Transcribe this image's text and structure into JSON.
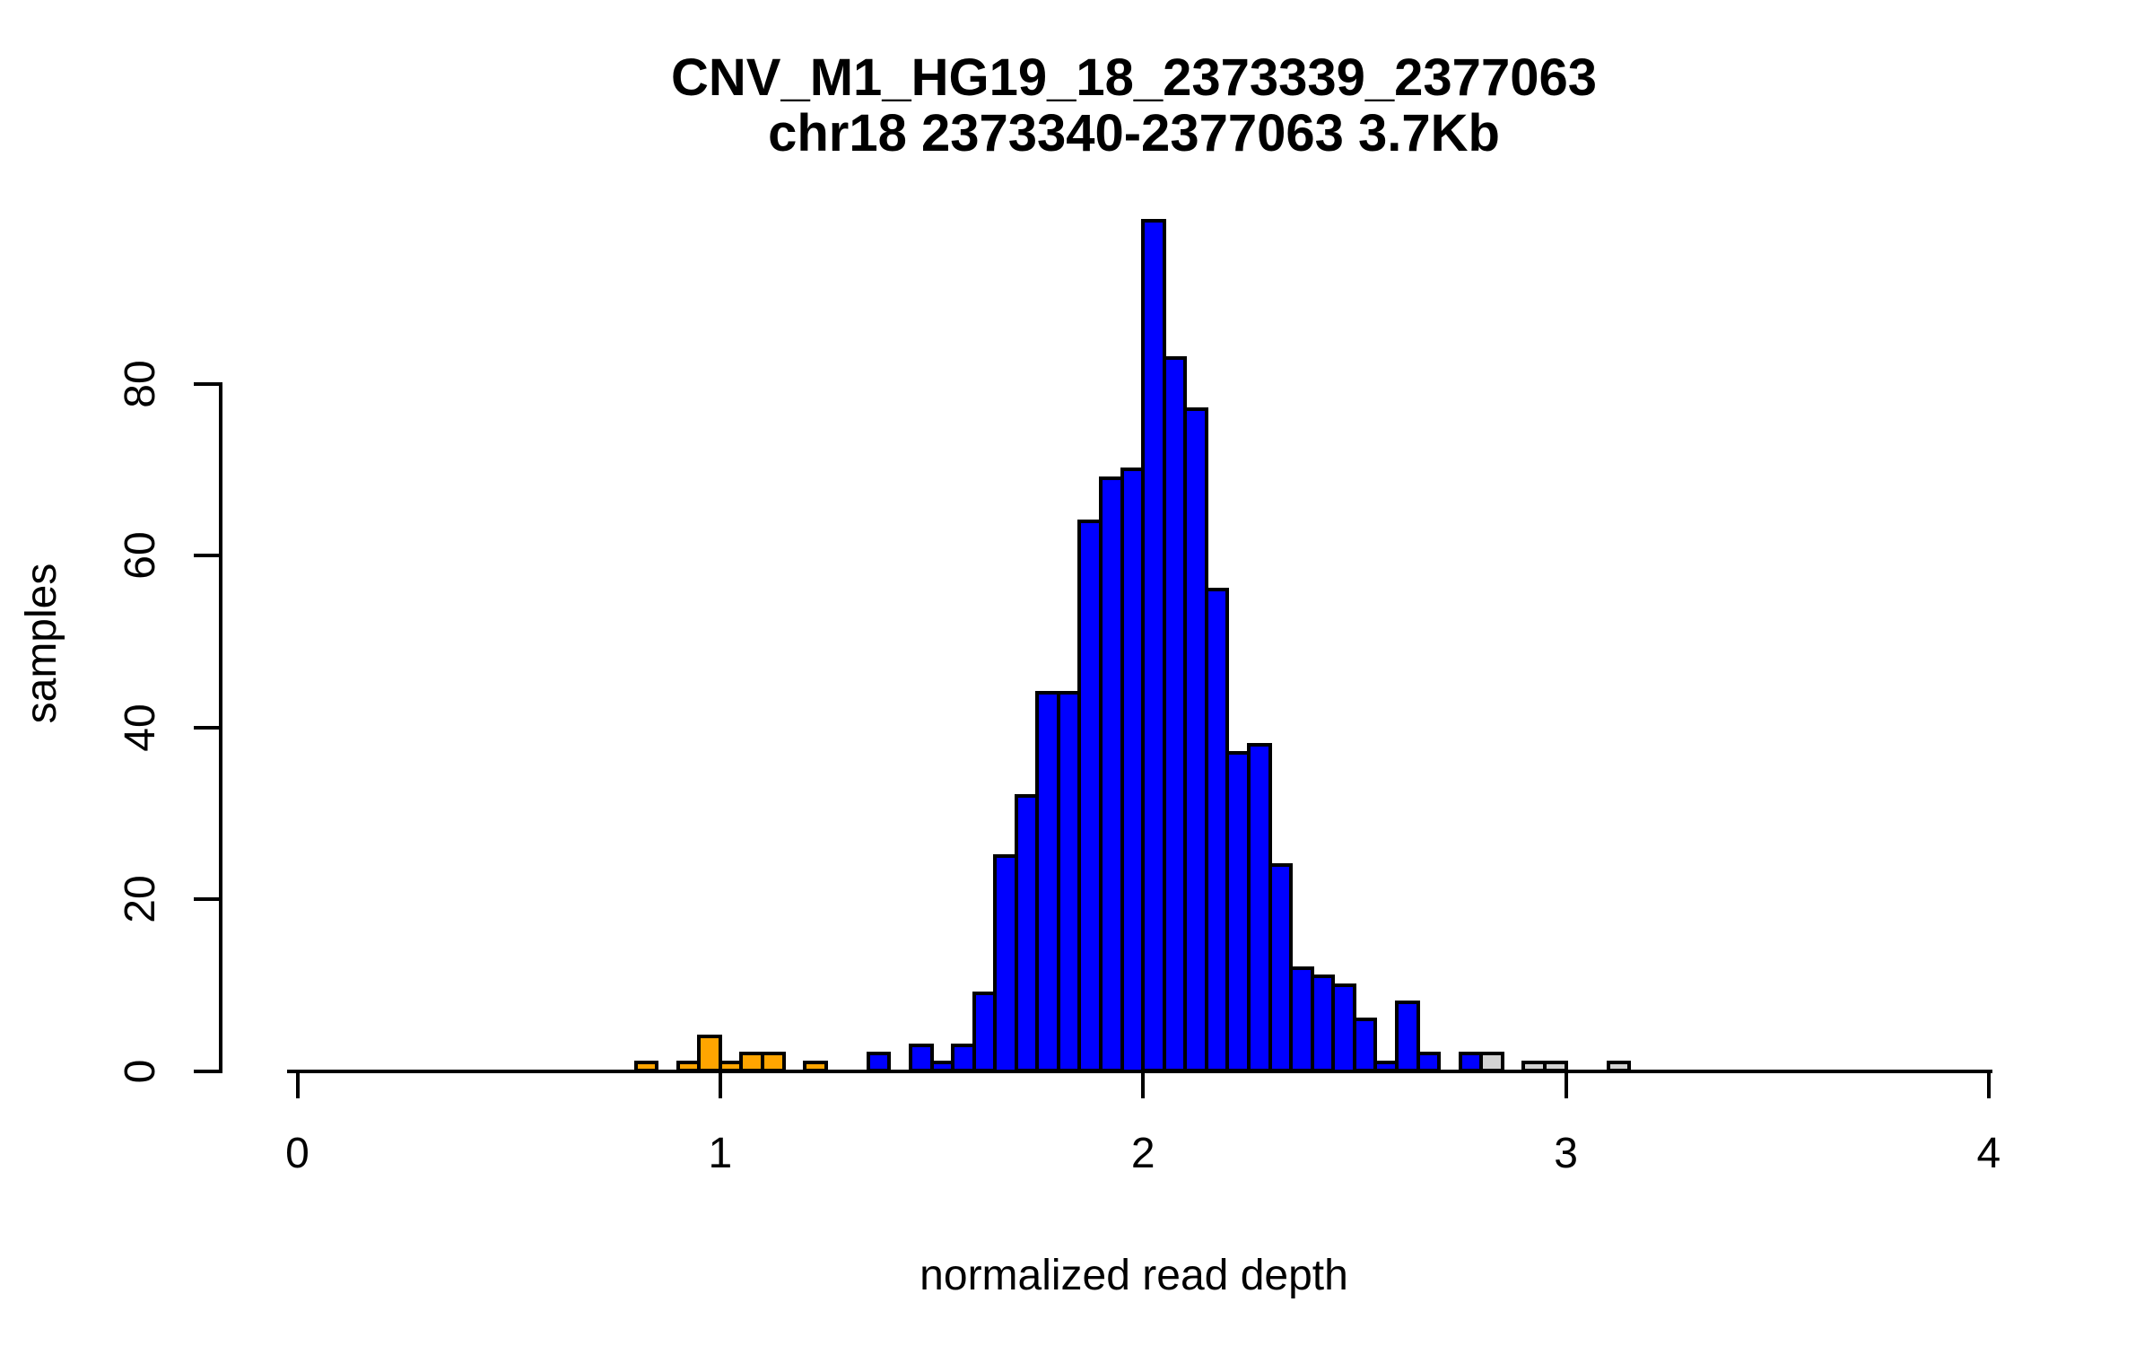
{
  "title": {
    "line1": "CNV_M1_HG19_18_2373339_2377063",
    "line2": "chr18 2373340-2377063 3.7Kb"
  },
  "axes": {
    "x": {
      "label": "normalized read depth",
      "tick_labels": [
        "0",
        "1",
        "2",
        "3",
        "4"
      ],
      "tick_values": [
        0,
        1,
        2,
        3,
        4
      ],
      "range": [
        0,
        4
      ]
    },
    "y": {
      "label": "samples",
      "tick_labels": [
        "0",
        "20",
        "40",
        "60",
        "80"
      ],
      "tick_values": [
        0,
        20,
        40,
        60,
        80
      ],
      "range": [
        0,
        99
      ]
    }
  },
  "colors": {
    "blue": "#0000FF",
    "orange": "#FFA500",
    "gray": "#D3D3D3",
    "axis": "#000000",
    "background": "#FFFFFF"
  },
  "chart_data": {
    "type": "bar",
    "subtype": "histogram",
    "title": "CNV_M1_HG19_18_2373339_2377063",
    "subtitle": "chr18 2373340-2377063 3.7Kb",
    "xlabel": "normalized read depth",
    "ylabel": "samples",
    "xlim": [
      0,
      4
    ],
    "ylim": [
      0,
      99
    ],
    "grid": false,
    "legend": false,
    "bin_width": 0.05,
    "bins": [
      {
        "x0": 0.8,
        "count": 1,
        "color": "orange"
      },
      {
        "x0": 0.9,
        "count": 1,
        "color": "orange"
      },
      {
        "x0": 0.95,
        "count": 4,
        "color": "orange"
      },
      {
        "x0": 1.0,
        "count": 1,
        "color": "orange"
      },
      {
        "x0": 1.05,
        "count": 2,
        "color": "orange"
      },
      {
        "x0": 1.1,
        "count": 2,
        "color": "orange"
      },
      {
        "x0": 1.2,
        "count": 1,
        "color": "orange"
      },
      {
        "x0": 1.35,
        "count": 2,
        "color": "blue"
      },
      {
        "x0": 1.45,
        "count": 3,
        "color": "blue"
      },
      {
        "x0": 1.5,
        "count": 1,
        "color": "blue"
      },
      {
        "x0": 1.55,
        "count": 3,
        "color": "blue"
      },
      {
        "x0": 1.6,
        "count": 9,
        "color": "blue"
      },
      {
        "x0": 1.65,
        "count": 25,
        "color": "blue"
      },
      {
        "x0": 1.7,
        "count": 32,
        "color": "blue"
      },
      {
        "x0": 1.75,
        "count": 44,
        "color": "blue"
      },
      {
        "x0": 1.8,
        "count": 44,
        "color": "blue"
      },
      {
        "x0": 1.85,
        "count": 64,
        "color": "blue"
      },
      {
        "x0": 1.9,
        "count": 69,
        "color": "blue"
      },
      {
        "x0": 1.95,
        "count": 70,
        "color": "blue"
      },
      {
        "x0": 2.0,
        "count": 99,
        "color": "blue"
      },
      {
        "x0": 2.05,
        "count": 83,
        "color": "blue"
      },
      {
        "x0": 2.1,
        "count": 77,
        "color": "blue"
      },
      {
        "x0": 2.15,
        "count": 56,
        "color": "blue"
      },
      {
        "x0": 2.2,
        "count": 37,
        "color": "blue"
      },
      {
        "x0": 2.25,
        "count": 38,
        "color": "blue"
      },
      {
        "x0": 2.3,
        "count": 24,
        "color": "blue"
      },
      {
        "x0": 2.35,
        "count": 12,
        "color": "blue"
      },
      {
        "x0": 2.4,
        "count": 11,
        "color": "blue"
      },
      {
        "x0": 2.45,
        "count": 10,
        "color": "blue"
      },
      {
        "x0": 2.5,
        "count": 6,
        "color": "blue"
      },
      {
        "x0": 2.55,
        "count": 1,
        "color": "blue"
      },
      {
        "x0": 2.6,
        "count": 8,
        "color": "blue"
      },
      {
        "x0": 2.65,
        "count": 2,
        "color": "blue"
      },
      {
        "x0": 2.75,
        "count": 2,
        "color": "blue"
      },
      {
        "x0": 2.8,
        "count": 2,
        "color": "gray"
      },
      {
        "x0": 2.9,
        "count": 1,
        "color": "gray"
      },
      {
        "x0": 2.95,
        "count": 1,
        "color": "gray"
      },
      {
        "x0": 3.1,
        "count": 1,
        "color": "gray"
      }
    ]
  }
}
